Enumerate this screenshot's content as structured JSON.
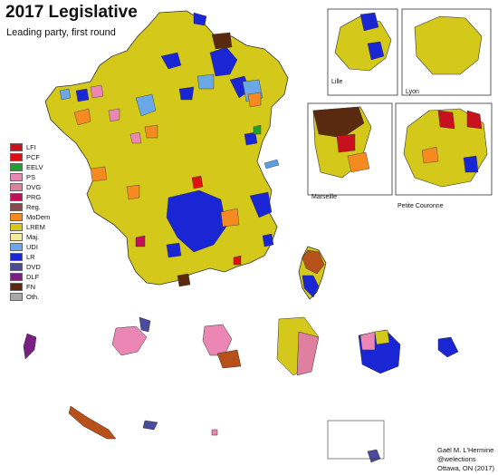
{
  "header": {
    "title": "2017 Legislative",
    "subtitle": "Leading party, first round"
  },
  "colors": {
    "LREM": "#d4c91a",
    "LR": "#1a26d4",
    "MoDem": "#f58a20",
    "UDI": "#6aa8e8",
    "FN": "#5a2a10",
    "LFI": "#c8101e",
    "PS": "#ec86b5",
    "DVG": "#e080a0",
    "DVD": "#4a4a9e",
    "Reg": "#8a4a4a",
    "outline": "#333333"
  },
  "legend": [
    {
      "label": "LFI",
      "color": "#c8101e"
    },
    {
      "label": "PCF",
      "color": "#e01010"
    },
    {
      "label": "EELV",
      "color": "#20a030"
    },
    {
      "label": "PS",
      "color": "#ec86b5"
    },
    {
      "label": "DVG",
      "color": "#e080a0"
    },
    {
      "label": "PRG",
      "color": "#c0105a"
    },
    {
      "label": "Reg.",
      "color": "#8a4a4a"
    },
    {
      "label": "MoDem",
      "color": "#f58a20"
    },
    {
      "label": "LREM",
      "color": "#d4c91a"
    },
    {
      "label": "Maj.",
      "color": "#f2ec9a"
    },
    {
      "label": "UDI",
      "color": "#6aa8e8"
    },
    {
      "label": "LR",
      "color": "#1a26d4"
    },
    {
      "label": "DVD",
      "color": "#4a4a9e"
    },
    {
      "label": "DLF",
      "color": "#7a2080"
    },
    {
      "label": "FN",
      "color": "#5a2a10"
    },
    {
      "label": "Oth.",
      "color": "#a8a8a8"
    }
  ],
  "insets": {
    "lille": "Lille",
    "lyon": "Lyon",
    "marseille": "Marseille",
    "petite_couronne": "Petite Couronne"
  },
  "credits": {
    "author": "Gaël M. L'Hermine",
    "handle": "@welections",
    "place": "Ottawa, ON (2017)"
  }
}
